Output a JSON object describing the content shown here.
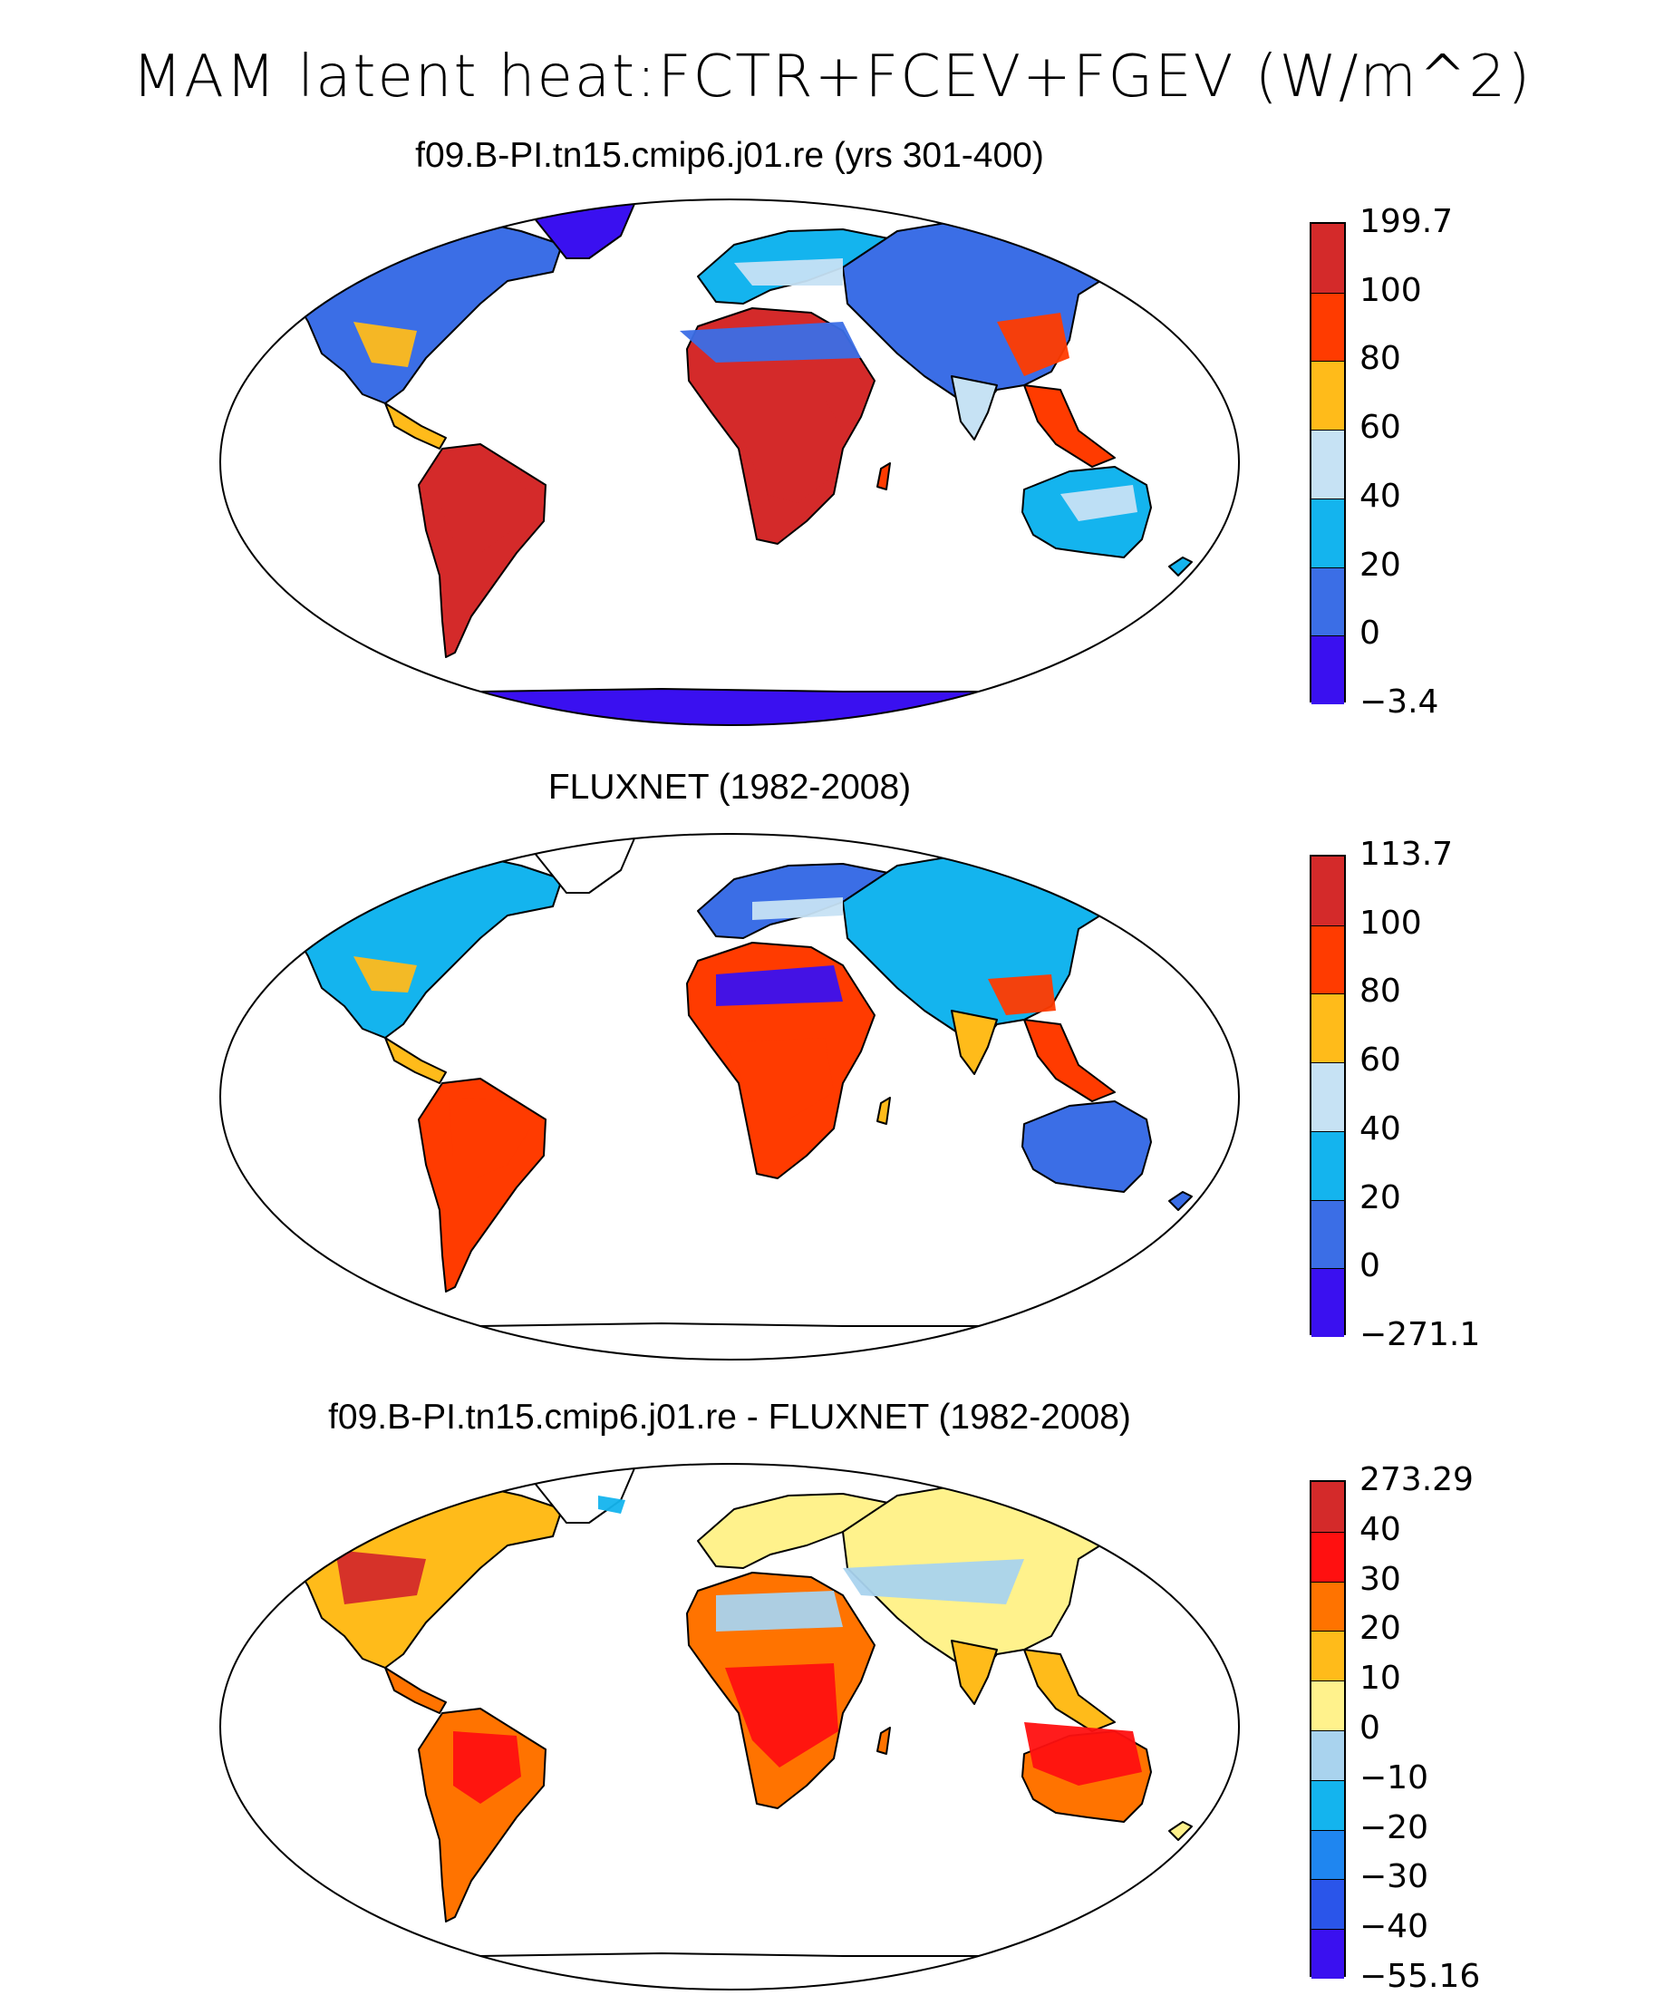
{
  "figure": {
    "title": "MAM latent heat:FCTR+FCEV+FGEV (W/m^2)"
  },
  "panels": [
    {
      "id": "model",
      "title": "f09.B-PI.tn15.cmip6.j01.re (yrs 301-400)",
      "colorbar": {
        "labels": [
          "199.7",
          "100",
          "80",
          "60",
          "40",
          "20",
          "0",
          "−3.4"
        ],
        "colors": [
          "#d42a2a",
          "#ff3b00",
          "#ffbb1a",
          "#c6e2f4",
          "#14b4ee",
          "#3b6ee6",
          "#3a10f0"
        ]
      }
    },
    {
      "id": "obs",
      "title": "FLUXNET (1982-2008)",
      "colorbar": {
        "labels": [
          "113.7",
          "100",
          "80",
          "60",
          "40",
          "20",
          "0",
          "−271.1"
        ],
        "colors": [
          "#d42a2a",
          "#ff3b00",
          "#ffbb1a",
          "#c6e2f4",
          "#14b4ee",
          "#3b6ee6",
          "#3a10f0"
        ]
      }
    },
    {
      "id": "diff",
      "title": "f09.B-PI.tn15.cmip6.j01.re - FLUXNET (1982-2008)",
      "colorbar": {
        "labels": [
          "273.29",
          "40",
          "30",
          "20",
          "10",
          "0",
          "−10",
          "−20",
          "−30",
          "−40",
          "−55.16"
        ],
        "colors": [
          "#d42a2a",
          "#ff1010",
          "#ff7300",
          "#ffbb1a",
          "#fff28c",
          "#a9d3ee",
          "#14b4ee",
          "#1f86f0",
          "#2a55ea",
          "#3a10f0"
        ]
      }
    }
  ],
  "map_colors": {
    "outline": "#000000",
    "ocean": "#ffffff",
    "ice": "#3a10f0"
  }
}
